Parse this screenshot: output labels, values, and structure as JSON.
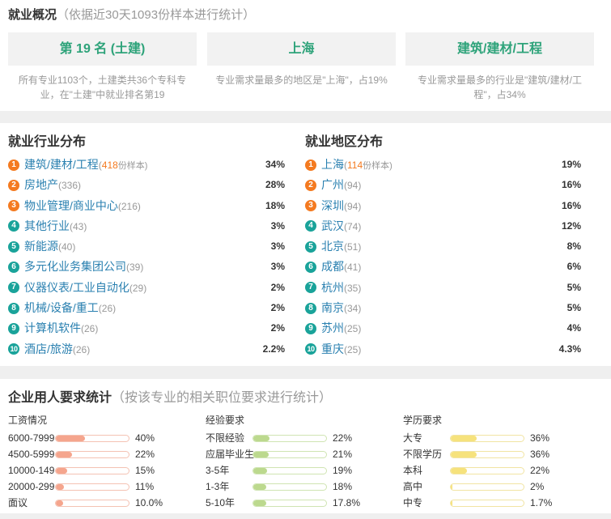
{
  "overview": {
    "title": "就业概况",
    "subtitle": "（依据近30天1093份样本进行统计）",
    "cards": [
      {
        "value": "第 19 名 (土建)",
        "desc": "所有专业1103个，土建类共36个专科专业，在\"土建\"中就业排名第19"
      },
      {
        "value": "上海",
        "desc": "专业需求量最多的地区是\"上海\"，占19%"
      },
      {
        "value": "建筑/建材/工程",
        "desc": "专业需求量最多的行业是\"建筑/建材/工程\"，占34%"
      }
    ]
  },
  "distribution": {
    "industry": {
      "title": "就业行业分布",
      "items": [
        {
          "rank": "1",
          "name": "建筑/建材/工程",
          "count_open": "(",
          "count": "418",
          "count_unit": "份样本)",
          "percent": "34%"
        },
        {
          "rank": "2",
          "name": "房地产",
          "count": "(336)",
          "percent": "28%"
        },
        {
          "rank": "3",
          "name": "物业管理/商业中心",
          "count": "(216)",
          "percent": "18%"
        },
        {
          "rank": "4",
          "name": "其他行业",
          "count": "(43)",
          "percent": "3%"
        },
        {
          "rank": "5",
          "name": "新能源",
          "count": "(40)",
          "percent": "3%"
        },
        {
          "rank": "6",
          "name": "多元化业务集团公司",
          "count": "(39)",
          "percent": "3%"
        },
        {
          "rank": "7",
          "name": "仪器仪表/工业自动化",
          "count": "(29)",
          "percent": "2%"
        },
        {
          "rank": "8",
          "name": "机械/设备/重工",
          "count": "(26)",
          "percent": "2%"
        },
        {
          "rank": "9",
          "name": "计算机软件",
          "count": "(26)",
          "percent": "2%"
        },
        {
          "rank": "10",
          "name": "酒店/旅游",
          "count": "(26)",
          "percent": "2.2%"
        }
      ]
    },
    "region": {
      "title": "就业地区分布",
      "items": [
        {
          "rank": "1",
          "name": "上海",
          "count_open": "(",
          "count": "114",
          "count_unit": "份样本)",
          "percent": "19%"
        },
        {
          "rank": "2",
          "name": "广州",
          "count": "(94)",
          "percent": "16%"
        },
        {
          "rank": "3",
          "name": "深圳",
          "count": "(94)",
          "percent": "16%"
        },
        {
          "rank": "4",
          "name": "武汉",
          "count": "(74)",
          "percent": "12%"
        },
        {
          "rank": "5",
          "name": "北京",
          "count": "(51)",
          "percent": "8%"
        },
        {
          "rank": "6",
          "name": "成都",
          "count": "(41)",
          "percent": "6%"
        },
        {
          "rank": "7",
          "name": "杭州",
          "count": "(35)",
          "percent": "5%"
        },
        {
          "rank": "8",
          "name": "南京",
          "count": "(34)",
          "percent": "5%"
        },
        {
          "rank": "9",
          "name": "苏州",
          "count": "(25)",
          "percent": "4%"
        },
        {
          "rank": "10",
          "name": "重庆",
          "count": "(25)",
          "percent": "4.3%"
        }
      ]
    }
  },
  "requirements": {
    "title": "企业用人要求统计",
    "subtitle": "（按该专业的相关职位要求进行统计）",
    "groups": [
      {
        "title": "工资情况",
        "fill_color": "#f5a58d",
        "border_color": "#f4c2b3",
        "items": [
          {
            "label": "6000-7999",
            "percent": "40%"
          },
          {
            "label": "4500-5999",
            "percent": "22%"
          },
          {
            "label": "10000-149",
            "percent": "15%"
          },
          {
            "label": "20000-299",
            "percent": "11%"
          },
          {
            "label": "面议",
            "percent": "10.0%"
          }
        ]
      },
      {
        "title": "经验要求",
        "fill_color": "#bcd98e",
        "border_color": "#cfe4b2",
        "items": [
          {
            "label": "不限经验",
            "percent": "22%"
          },
          {
            "label": "应届毕业生",
            "percent": "21%"
          },
          {
            "label": "3-5年",
            "percent": "19%"
          },
          {
            "label": "1-3年",
            "percent": "18%"
          },
          {
            "label": "5-10年",
            "percent": "17.8%"
          }
        ]
      },
      {
        "title": "学历要求",
        "fill_color": "#f6e27c",
        "border_color": "#f1e4a3",
        "items": [
          {
            "label": "大专",
            "percent": "36%"
          },
          {
            "label": "不限学历",
            "percent": "36%"
          },
          {
            "label": "本科",
            "percent": "22%"
          },
          {
            "label": "高中",
            "percent": "2%"
          },
          {
            "label": "中专",
            "percent": "1.7%"
          }
        ]
      }
    ]
  },
  "colors": {
    "highlight_green": "#2ea37a",
    "rank_top": "#f47a20",
    "rank_rest": "#1aa39a",
    "link": "#2a80b0"
  }
}
